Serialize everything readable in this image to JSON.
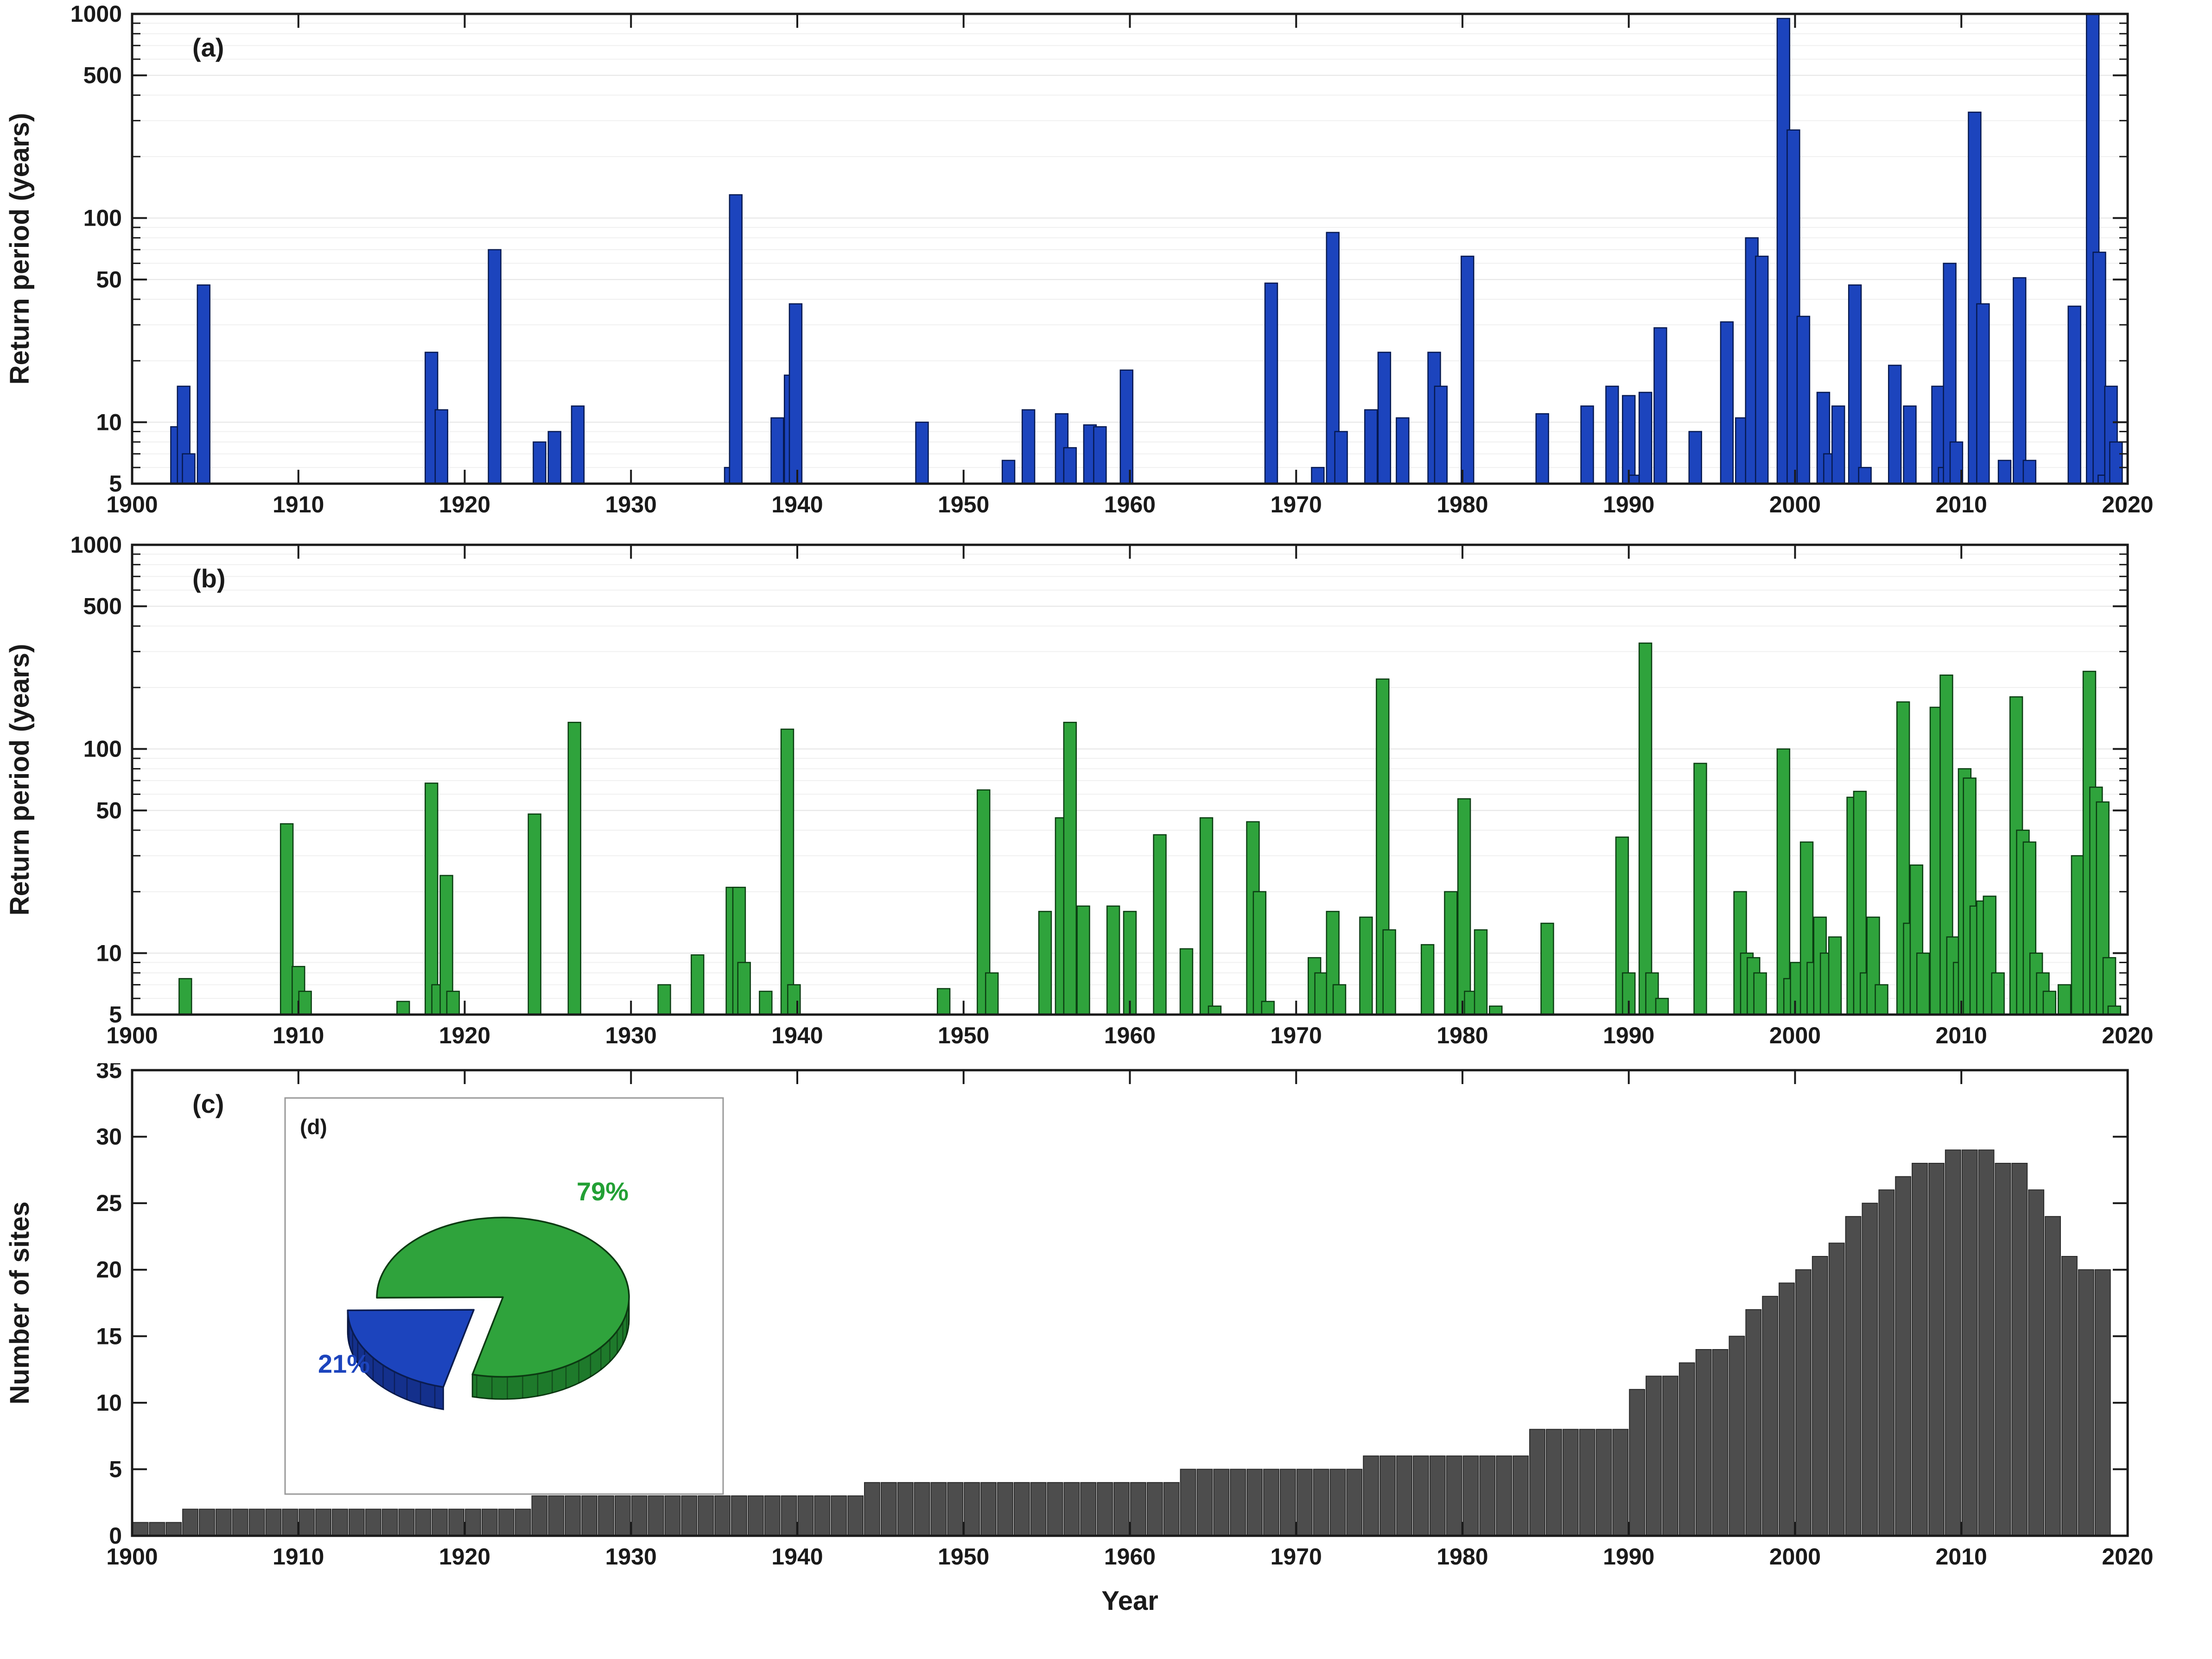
{
  "figure": {
    "background": "#ffffff",
    "axis_color": "#1a1a1a",
    "tick_label_color": "#1a1a1a",
    "xlabel": "Year"
  },
  "chart_data": [
    {
      "id": "panel-a",
      "panel_label": "(a)",
      "type": "bar",
      "yscale": "log",
      "ylabel": "Return period (years)",
      "xlim": [
        1900,
        2020
      ],
      "ylim": [
        5,
        1000
      ],
      "x_ticks": [
        1900,
        1910,
        1920,
        1930,
        1940,
        1950,
        1960,
        1970,
        1980,
        1990,
        2000,
        2010,
        2020
      ],
      "y_ticks": [
        5,
        10,
        50,
        100,
        500,
        1000
      ],
      "y_minor_ticks": [
        6,
        7,
        8,
        9,
        20,
        30,
        40,
        60,
        70,
        80,
        90,
        200,
        300,
        400,
        600,
        700,
        800,
        900
      ],
      "bar_width_years": 0.75,
      "bar_color": "#1c44bd",
      "bar_edge_color": "#06194f",
      "points": [
        [
          1902.7,
          9.5
        ],
        [
          1903.1,
          15
        ],
        [
          1903.4,
          7
        ],
        [
          1904.3,
          47
        ],
        [
          1918.0,
          22
        ],
        [
          1918.6,
          11.5
        ],
        [
          1921.8,
          70
        ],
        [
          1924.5,
          8
        ],
        [
          1925.4,
          9
        ],
        [
          1926.8,
          12
        ],
        [
          1936.0,
          6
        ],
        [
          1936.3,
          130
        ],
        [
          1938.8,
          10.5
        ],
        [
          1939.6,
          17
        ],
        [
          1939.9,
          38
        ],
        [
          1947.5,
          10
        ],
        [
          1952.7,
          6.5
        ],
        [
          1953.9,
          11.5
        ],
        [
          1955.9,
          11
        ],
        [
          1956.4,
          7.5
        ],
        [
          1957.6,
          9.7
        ],
        [
          1958.2,
          9.5
        ],
        [
          1959.8,
          18
        ],
        [
          1968.5,
          48
        ],
        [
          1971.3,
          6
        ],
        [
          1972.2,
          85
        ],
        [
          1972.7,
          9
        ],
        [
          1974.5,
          11.5
        ],
        [
          1975.3,
          22
        ],
        [
          1976.4,
          10.5
        ],
        [
          1978.3,
          22
        ],
        [
          1978.7,
          15
        ],
        [
          1980.3,
          65
        ],
        [
          1984.8,
          11
        ],
        [
          1987.5,
          12
        ],
        [
          1989.0,
          15
        ],
        [
          1990.0,
          13.5
        ],
        [
          1990.4,
          5.5
        ],
        [
          1991.0,
          14
        ],
        [
          1991.9,
          29
        ],
        [
          1994.0,
          9
        ],
        [
          1995.9,
          31
        ],
        [
          1996.8,
          10.5
        ],
        [
          1997.4,
          80
        ],
        [
          1998.0,
          65
        ],
        [
          1999.3,
          950
        ],
        [
          1999.9,
          270
        ],
        [
          2000.5,
          33
        ],
        [
          2001.7,
          14
        ],
        [
          2002.1,
          7
        ],
        [
          2002.6,
          12
        ],
        [
          2003.6,
          47
        ],
        [
          2004.2,
          6
        ],
        [
          2006.0,
          19
        ],
        [
          2006.9,
          12
        ],
        [
          2008.6,
          15
        ],
        [
          2009.0,
          6
        ],
        [
          2009.3,
          60
        ],
        [
          2009.7,
          8
        ],
        [
          2010.8,
          330
        ],
        [
          2011.3,
          38
        ],
        [
          2012.6,
          6.5
        ],
        [
          2013.5,
          51
        ],
        [
          2014.1,
          6.5
        ],
        [
          2016.8,
          37
        ],
        [
          2017.9,
          1000
        ],
        [
          2018.3,
          68
        ],
        [
          2018.6,
          5.5
        ],
        [
          2019.0,
          15
        ],
        [
          2019.3,
          8
        ]
      ]
    },
    {
      "id": "panel-b",
      "panel_label": "(b)",
      "type": "bar",
      "yscale": "log",
      "ylabel": "Return period (years)",
      "xlim": [
        1900,
        2020
      ],
      "ylim": [
        5,
        1000
      ],
      "x_ticks": [
        1900,
        1910,
        1920,
        1930,
        1940,
        1950,
        1960,
        1970,
        1980,
        1990,
        2000,
        2010,
        2020
      ],
      "y_ticks": [
        5,
        10,
        50,
        100,
        500,
        1000
      ],
      "y_minor_ticks": [
        6,
        7,
        8,
        9,
        20,
        30,
        40,
        60,
        70,
        80,
        90,
        200,
        300,
        400,
        600,
        700,
        800,
        900
      ],
      "bar_width_years": 0.75,
      "bar_color": "#2fa33c",
      "bar_edge_color": "#0b3d12",
      "points": [
        [
          1903.2,
          7.5
        ],
        [
          1909.3,
          43
        ],
        [
          1910.0,
          8.6
        ],
        [
          1910.4,
          6.5
        ],
        [
          1916.3,
          5.8
        ],
        [
          1918.0,
          68
        ],
        [
          1918.4,
          7
        ],
        [
          1918.9,
          24
        ],
        [
          1919.3,
          6.5
        ],
        [
          1924.2,
          48
        ],
        [
          1926.6,
          135
        ],
        [
          1932.0,
          7
        ],
        [
          1934.0,
          9.8
        ],
        [
          1936.1,
          21
        ],
        [
          1936.5,
          21
        ],
        [
          1936.8,
          9
        ],
        [
          1938.1,
          6.5
        ],
        [
          1939.4,
          125
        ],
        [
          1939.8,
          7
        ],
        [
          1948.8,
          6.7
        ],
        [
          1951.2,
          63
        ],
        [
          1951.7,
          8
        ],
        [
          1954.9,
          16
        ],
        [
          1955.9,
          46
        ],
        [
          1956.4,
          135
        ],
        [
          1957.2,
          17
        ],
        [
          1959.0,
          17
        ],
        [
          1960.0,
          16
        ],
        [
          1961.8,
          38
        ],
        [
          1963.4,
          10.5
        ],
        [
          1964.6,
          46
        ],
        [
          1965.1,
          5.5
        ],
        [
          1967.4,
          44
        ],
        [
          1967.8,
          20
        ],
        [
          1968.3,
          5.8
        ],
        [
          1971.1,
          9.5
        ],
        [
          1971.5,
          8
        ],
        [
          1972.2,
          16
        ],
        [
          1972.6,
          7
        ],
        [
          1974.2,
          15
        ],
        [
          1975.2,
          220
        ],
        [
          1975.6,
          13
        ],
        [
          1977.9,
          11
        ],
        [
          1979.3,
          20
        ],
        [
          1980.1,
          57
        ],
        [
          1980.5,
          6.5
        ],
        [
          1981.1,
          13
        ],
        [
          1982.0,
          5.5
        ],
        [
          1985.1,
          14
        ],
        [
          1989.6,
          37
        ],
        [
          1990.0,
          8
        ],
        [
          1991.0,
          330
        ],
        [
          1991.4,
          8
        ],
        [
          1992.0,
          6
        ],
        [
          1994.3,
          85
        ],
        [
          1996.7,
          20
        ],
        [
          1997.1,
          10
        ],
        [
          1997.5,
          9.5
        ],
        [
          1997.9,
          8
        ],
        [
          1999.3,
          100
        ],
        [
          1999.7,
          7.5
        ],
        [
          2000.1,
          9
        ],
        [
          2000.7,
          35
        ],
        [
          2001.1,
          9
        ],
        [
          2001.5,
          15
        ],
        [
          2001.9,
          10
        ],
        [
          2002.4,
          12
        ],
        [
          2003.5,
          58
        ],
        [
          2003.9,
          62
        ],
        [
          2004.3,
          8
        ],
        [
          2004.7,
          15
        ],
        [
          2005.2,
          7
        ],
        [
          2006.5,
          170
        ],
        [
          2006.9,
          14
        ],
        [
          2007.3,
          27
        ],
        [
          2007.7,
          10
        ],
        [
          2008.5,
          160
        ],
        [
          2009.1,
          230
        ],
        [
          2009.5,
          12
        ],
        [
          2009.9,
          9
        ],
        [
          2010.2,
          80
        ],
        [
          2010.5,
          72
        ],
        [
          2010.9,
          17
        ],
        [
          2011.3,
          18
        ],
        [
          2011.7,
          19
        ],
        [
          2012.2,
          8
        ],
        [
          2013.3,
          180
        ],
        [
          2013.7,
          40
        ],
        [
          2014.1,
          35
        ],
        [
          2014.5,
          10
        ],
        [
          2014.9,
          8
        ],
        [
          2015.3,
          6.5
        ],
        [
          2016.2,
          7
        ],
        [
          2017.0,
          30
        ],
        [
          2017.7,
          240
        ],
        [
          2018.1,
          65
        ],
        [
          2018.5,
          55
        ],
        [
          2018.9,
          9.5
        ],
        [
          2019.2,
          5.5
        ]
      ]
    },
    {
      "id": "panel-c",
      "panel_label": "(c)",
      "type": "bar",
      "yscale": "linear",
      "ylabel": "Number of sites",
      "xlabel": "Year",
      "xlim": [
        1900,
        2020
      ],
      "ylim": [
        0,
        35
      ],
      "x_ticks": [
        1900,
        1910,
        1920,
        1930,
        1940,
        1950,
        1960,
        1970,
        1980,
        1990,
        2000,
        2010,
        2020
      ],
      "y_ticks": [
        0,
        5,
        10,
        15,
        20,
        25,
        30,
        35
      ],
      "x_start": 1900,
      "x_step": 1,
      "bar_color": "#4d4d4d",
      "bar_edge_color": "#2b2b2b",
      "values": [
        1,
        1,
        1,
        2,
        2,
        2,
        2,
        2,
        2,
        2,
        2,
        2,
        2,
        2,
        2,
        2,
        2,
        2,
        2,
        2,
        2,
        2,
        2,
        2,
        3,
        3,
        3,
        3,
        3,
        3,
        3,
        3,
        3,
        3,
        3,
        3,
        3,
        3,
        3,
        3,
        3,
        3,
        3,
        3,
        4,
        4,
        4,
        4,
        4,
        4,
        4,
        4,
        4,
        4,
        4,
        4,
        4,
        4,
        4,
        4,
        4,
        4,
        4,
        5,
        5,
        5,
        5,
        5,
        5,
        5,
        5,
        5,
        5,
        5,
        6,
        6,
        6,
        6,
        6,
        6,
        6,
        6,
        6,
        6,
        8,
        8,
        8,
        8,
        8,
        8,
        11,
        12,
        12,
        13,
        14,
        14,
        15,
        17,
        18,
        19,
        20,
        21,
        22,
        24,
        25,
        26,
        27,
        28,
        28,
        29,
        29,
        29,
        28,
        28,
        26,
        24,
        21,
        20,
        20
      ]
    },
    {
      "id": "panel-d",
      "panel_label": "(d)",
      "type": "pie",
      "slices": [
        {
          "label": "79%",
          "value": 79,
          "color": "#2fa33c",
          "side_color": "#1e7a2b",
          "edge_color": "#0c3a12",
          "label_color": "#23a035",
          "exploded": false
        },
        {
          "label": "21%",
          "value": 21,
          "color": "#1c44bd",
          "side_color": "#14308c",
          "edge_color": "#0a1c50",
          "label_color": "#1c44bd",
          "exploded": true
        }
      ]
    }
  ]
}
